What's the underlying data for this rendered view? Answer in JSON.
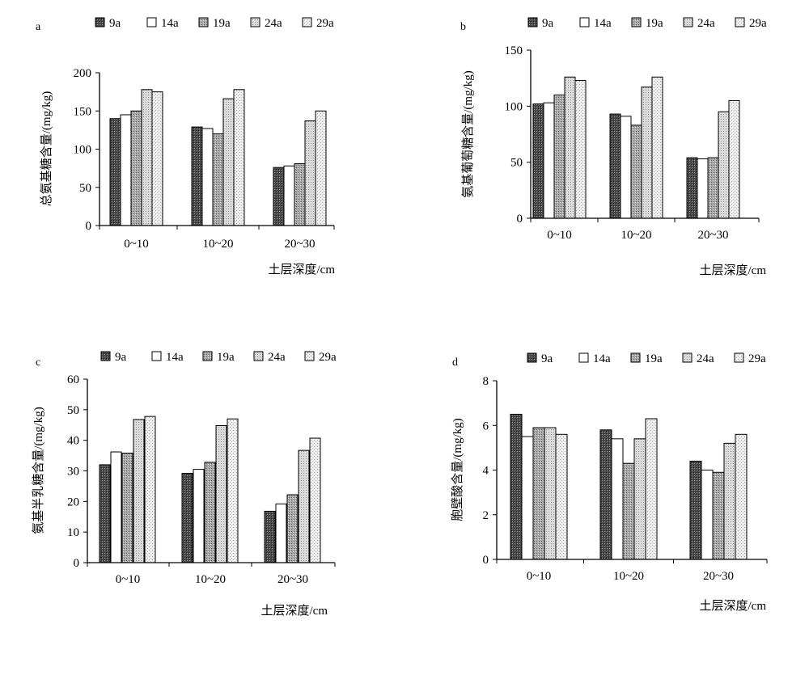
{
  "figure": {
    "legend_labels": [
      "9a",
      "14a",
      "19a",
      "24a",
      "29a"
    ],
    "xlabel": "土层深度/cm",
    "categories": [
      "0~10",
      "10~20",
      "20~30"
    ]
  },
  "chart_data": [
    {
      "type": "bar",
      "panel_label": "a",
      "categories": [
        "0~10",
        "10~20",
        "20~30"
      ],
      "series": [
        {
          "name": "9a",
          "values": [
            140,
            129,
            76
          ]
        },
        {
          "name": "14a",
          "values": [
            145,
            127,
            78
          ]
        },
        {
          "name": "19a",
          "values": [
            150,
            120,
            81
          ]
        },
        {
          "name": "24a",
          "values": [
            178,
            166,
            137
          ]
        },
        {
          "name": "29a",
          "values": [
            175,
            178,
            150
          ]
        }
      ],
      "xlabel": "土层深度/cm",
      "ylabel": "总氨基糖含量/(mg/kg)",
      "ylim": [
        0,
        200
      ],
      "yticks": [
        0,
        50,
        100,
        150,
        200
      ],
      "grid": false,
      "legend_position": "top"
    },
    {
      "type": "bar",
      "panel_label": "b",
      "categories": [
        "0~10",
        "10~20",
        "20~30"
      ],
      "series": [
        {
          "name": "9a",
          "values": [
            102,
            93,
            54
          ]
        },
        {
          "name": "14a",
          "values": [
            103,
            91,
            53
          ]
        },
        {
          "name": "19a",
          "values": [
            110,
            83,
            54
          ]
        },
        {
          "name": "24a",
          "values": [
            126,
            117,
            95
          ]
        },
        {
          "name": "29a",
          "values": [
            123,
            126,
            105
          ]
        }
      ],
      "xlabel": "土层深度/cm",
      "ylabel": "氨基葡萄糖含量/(mg/kg)",
      "ylim": [
        0,
        150
      ],
      "yticks": [
        0,
        50,
        100,
        150
      ],
      "grid": false,
      "legend_position": "top"
    },
    {
      "type": "bar",
      "panel_label": "c",
      "categories": [
        "0~10",
        "10~20",
        "20~30"
      ],
      "series": [
        {
          "name": "9a",
          "values": [
            32,
            29.2,
            16.8
          ]
        },
        {
          "name": "14a",
          "values": [
            36.2,
            30.5,
            19.2
          ]
        },
        {
          "name": "19a",
          "values": [
            35.8,
            32.8,
            22.2
          ]
        },
        {
          "name": "24a",
          "values": [
            46.8,
            44.8,
            36.7
          ]
        },
        {
          "name": "29a",
          "values": [
            47.8,
            47,
            40.7
          ]
        }
      ],
      "xlabel": "土层深度/cm",
      "ylabel": "氨基半乳糖含量/(mg/kg)",
      "ylim": [
        0,
        60
      ],
      "yticks": [
        0,
        10,
        20,
        30,
        40,
        50,
        60
      ],
      "grid": false,
      "legend_position": "top"
    },
    {
      "type": "bar",
      "panel_label": "d",
      "categories": [
        "0~10",
        "10~20",
        "20~30"
      ],
      "series": [
        {
          "name": "9a",
          "values": [
            6.5,
            5.8,
            4.4
          ]
        },
        {
          "name": "14a",
          "values": [
            5.5,
            5.4,
            4.0
          ]
        },
        {
          "name": "19a",
          "values": [
            5.9,
            4.3,
            3.9
          ]
        },
        {
          "name": "24a",
          "values": [
            5.9,
            5.4,
            5.2
          ]
        },
        {
          "name": "29a",
          "values": [
            5.6,
            6.3,
            5.6
          ]
        }
      ],
      "xlabel": "土层深度/cm",
      "ylabel": "胞壁酸含量/(mg/kg)",
      "ylim": [
        0,
        8
      ],
      "yticks": [
        0,
        2,
        4,
        6,
        8
      ],
      "grid": false,
      "legend_position": "top"
    }
  ]
}
